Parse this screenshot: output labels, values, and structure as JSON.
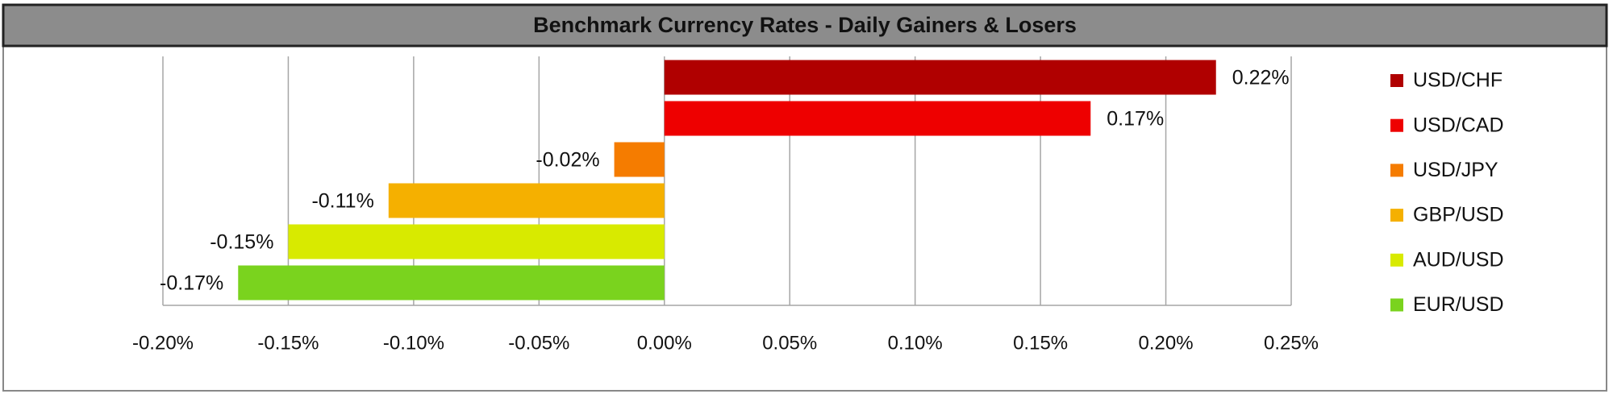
{
  "chart_data": {
    "type": "bar",
    "orientation": "horizontal",
    "title": "Benchmark Currency Rates - Daily Gainers & Losers",
    "series": [
      {
        "name": "USD/CHF",
        "color": "#b00000",
        "values": [
          0.22
        ],
        "value_labels": [
          "0.22%"
        ]
      },
      {
        "name": "USD/CAD",
        "color": "#ee0000",
        "values": [
          0.17
        ],
        "value_labels": [
          "0.17%"
        ]
      },
      {
        "name": "USD/JPY",
        "color": "#f57c00",
        "values": [
          -0.02
        ],
        "value_labels": [
          "-0.02%"
        ]
      },
      {
        "name": "GBP/USD",
        "color": "#f5b000",
        "values": [
          -0.11
        ],
        "value_labels": [
          "-0.11%"
        ]
      },
      {
        "name": "AUD/USD",
        "color": "#d8ea00",
        "values": [
          -0.15
        ],
        "value_labels": [
          "-0.15%"
        ]
      },
      {
        "name": "EUR/USD",
        "color": "#7ad31e",
        "values": [
          -0.17
        ],
        "value_labels": [
          "-0.17%"
        ]
      }
    ],
    "xlim": [
      -0.2,
      0.25
    ],
    "xticks": [
      {
        "value": -0.2,
        "label": "-0.20%"
      },
      {
        "value": -0.15,
        "label": "-0.15%"
      },
      {
        "value": -0.1,
        "label": "-0.10%"
      },
      {
        "value": -0.05,
        "label": "-0.05%"
      },
      {
        "value": 0,
        "label": "0.00%"
      },
      {
        "value": 0.05,
        "label": "0.05%"
      },
      {
        "value": 0.1,
        "label": "0.10%"
      },
      {
        "value": 0.15,
        "label": "0.15%"
      },
      {
        "value": 0.2,
        "label": "0.20%"
      },
      {
        "value": 0.25,
        "label": "0.25%"
      }
    ],
    "grid": true,
    "legend": "right"
  }
}
